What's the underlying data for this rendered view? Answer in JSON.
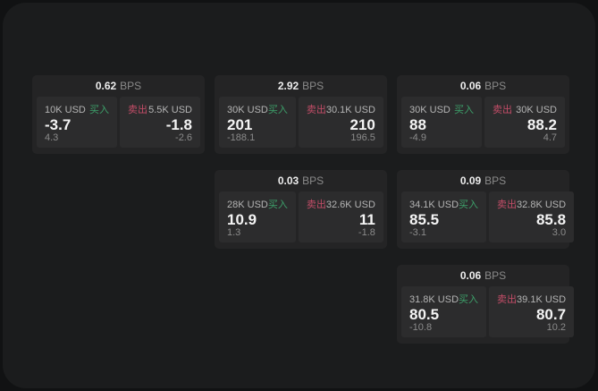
{
  "labels": {
    "bps_unit": "BPS",
    "buy": "买入",
    "sell": "卖出"
  },
  "colors": {
    "buy": "#3da06a",
    "sell": "#c44d68",
    "card_bg": "#242425",
    "panel_bg": "#2c2c2d",
    "canvas_bg": "#1b1c1d",
    "page_bg": "#111213"
  },
  "cards": [
    {
      "row": 1,
      "col": 1,
      "spread": "0.62",
      "buy": {
        "size": "10K USD",
        "price": "-3.7",
        "delta": "4.3"
      },
      "sell": {
        "size": "5.5K USD",
        "price": "-1.8",
        "delta": "-2.6"
      }
    },
    {
      "row": 1,
      "col": 2,
      "spread": "2.92",
      "buy": {
        "size": "30K USD",
        "price": "201",
        "delta": "-188.1"
      },
      "sell": {
        "size": "30.1K USD",
        "price": "210",
        "delta": "196.5"
      }
    },
    {
      "row": 1,
      "col": 3,
      "spread": "0.06",
      "buy": {
        "size": "30K USD",
        "price": "88",
        "delta": "-4.9"
      },
      "sell": {
        "size": "30K USD",
        "price": "88.2",
        "delta": "4.7"
      }
    },
    {
      "row": 2,
      "col": 2,
      "spread": "0.03",
      "buy": {
        "size": "28K USD",
        "price": "10.9",
        "delta": "1.3"
      },
      "sell": {
        "size": "32.6K USD",
        "price": "11",
        "delta": "-1.8"
      }
    },
    {
      "row": 2,
      "col": 3,
      "spread": "0.09",
      "buy": {
        "size": "34.1K USD",
        "price": "85.5",
        "delta": "-3.1"
      },
      "sell": {
        "size": "32.8K USD",
        "price": "85.8",
        "delta": "3.0"
      }
    },
    {
      "row": 3,
      "col": 3,
      "spread": "0.06",
      "buy": {
        "size": "31.8K USD",
        "price": "80.5",
        "delta": "-10.8"
      },
      "sell": {
        "size": "39.1K USD",
        "price": "80.7",
        "delta": "10.2"
      }
    }
  ]
}
